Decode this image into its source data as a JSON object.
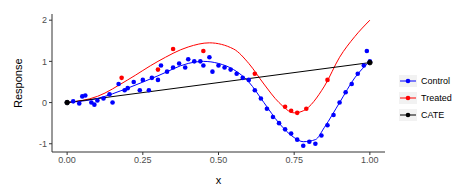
{
  "chart_data": {
    "type": "line",
    "xlabel": "x",
    "ylabel": "Response",
    "xlim": [
      -0.05,
      1.05
    ],
    "ylim": [
      -1.2,
      2.15
    ],
    "xticks": [
      {
        "value": 0,
        "label": "0.00"
      },
      {
        "value": 0.25,
        "label": "0.25"
      },
      {
        "value": 0.5,
        "label": "0.50"
      },
      {
        "value": 0.75,
        "label": "0.75"
      },
      {
        "value": 1,
        "label": "1.00"
      }
    ],
    "yticks": [
      -1,
      0,
      1,
      2
    ],
    "grid": false,
    "legend": "right",
    "series": [
      {
        "name": "Control",
        "color": "#0000ff",
        "marker": "circle",
        "line_style": "solid",
        "x": [
          0.0,
          0.02,
          0.04,
          0.05,
          0.06,
          0.08,
          0.09,
          0.1,
          0.12,
          0.14,
          0.15,
          0.17,
          0.19,
          0.2,
          0.22,
          0.24,
          0.25,
          0.27,
          0.28,
          0.3,
          0.31,
          0.33,
          0.35,
          0.37,
          0.39,
          0.4,
          0.42,
          0.44,
          0.45,
          0.47,
          0.48,
          0.5,
          0.52,
          0.54,
          0.56,
          0.58,
          0.6,
          0.62,
          0.64,
          0.66,
          0.68,
          0.7,
          0.72,
          0.74,
          0.76,
          0.78,
          0.8,
          0.82,
          0.84,
          0.86,
          0.88,
          0.9,
          0.92,
          0.94,
          0.96,
          0.98,
          0.99,
          1.0
        ],
        "values": [
          0.0,
          0.03,
          -0.02,
          0.15,
          0.17,
          0.0,
          -0.05,
          0.05,
          0.1,
          0.2,
          0.0,
          0.45,
          0.3,
          0.35,
          0.5,
          0.3,
          0.55,
          0.3,
          0.6,
          0.55,
          0.9,
          0.75,
          0.85,
          0.95,
          0.85,
          1.05,
          1.0,
          1.0,
          0.9,
          1.1,
          0.75,
          0.9,
          0.85,
          0.8,
          0.7,
          0.6,
          0.55,
          0.3,
          0.1,
          -0.15,
          -0.35,
          -0.5,
          -0.65,
          -0.75,
          -0.9,
          -1.05,
          -0.95,
          -1.0,
          -0.8,
          -0.55,
          -0.3,
          0.0,
          0.25,
          0.45,
          0.7,
          0.9,
          1.25,
          1.0
        ],
        "fit": {
          "x": [
            0.0,
            0.1,
            0.2,
            0.3,
            0.4,
            0.45,
            0.5,
            0.55,
            0.6,
            0.65,
            0.7,
            0.75,
            0.78,
            0.82,
            0.85,
            0.9,
            0.95,
            1.0
          ],
          "values": [
            0.0,
            0.1,
            0.35,
            0.65,
            0.95,
            1.0,
            0.95,
            0.8,
            0.5,
            0.0,
            -0.5,
            -0.85,
            -0.95,
            -0.9,
            -0.6,
            0.0,
            0.6,
            1.0
          ]
        }
      },
      {
        "name": "Treated",
        "color": "#ff0000",
        "marker": "circle",
        "line_style": "solid",
        "x": [
          0.18,
          0.3,
          0.35,
          0.45,
          0.62,
          0.72,
          0.74,
          0.76,
          0.79,
          0.86
        ],
        "values": [
          0.6,
          0.8,
          1.3,
          1.25,
          0.7,
          -0.1,
          -0.2,
          -0.25,
          -0.15,
          0.55
        ],
        "fit": {
          "x": [
            0.0,
            0.1,
            0.2,
            0.3,
            0.4,
            0.47,
            0.55,
            0.6,
            0.65,
            0.7,
            0.75,
            0.78,
            0.85,
            0.9,
            0.95,
            1.0
          ],
          "values": [
            0.0,
            0.15,
            0.55,
            1.0,
            1.35,
            1.45,
            1.3,
            0.95,
            0.45,
            0.0,
            -0.25,
            -0.2,
            0.4,
            1.1,
            1.6,
            2.0
          ]
        }
      },
      {
        "name": "CATE",
        "color": "#000000",
        "marker": "circle",
        "line_style": "solid",
        "x": [
          0.0,
          1.0
        ],
        "values": [
          0.0,
          0.97
        ]
      }
    ]
  }
}
